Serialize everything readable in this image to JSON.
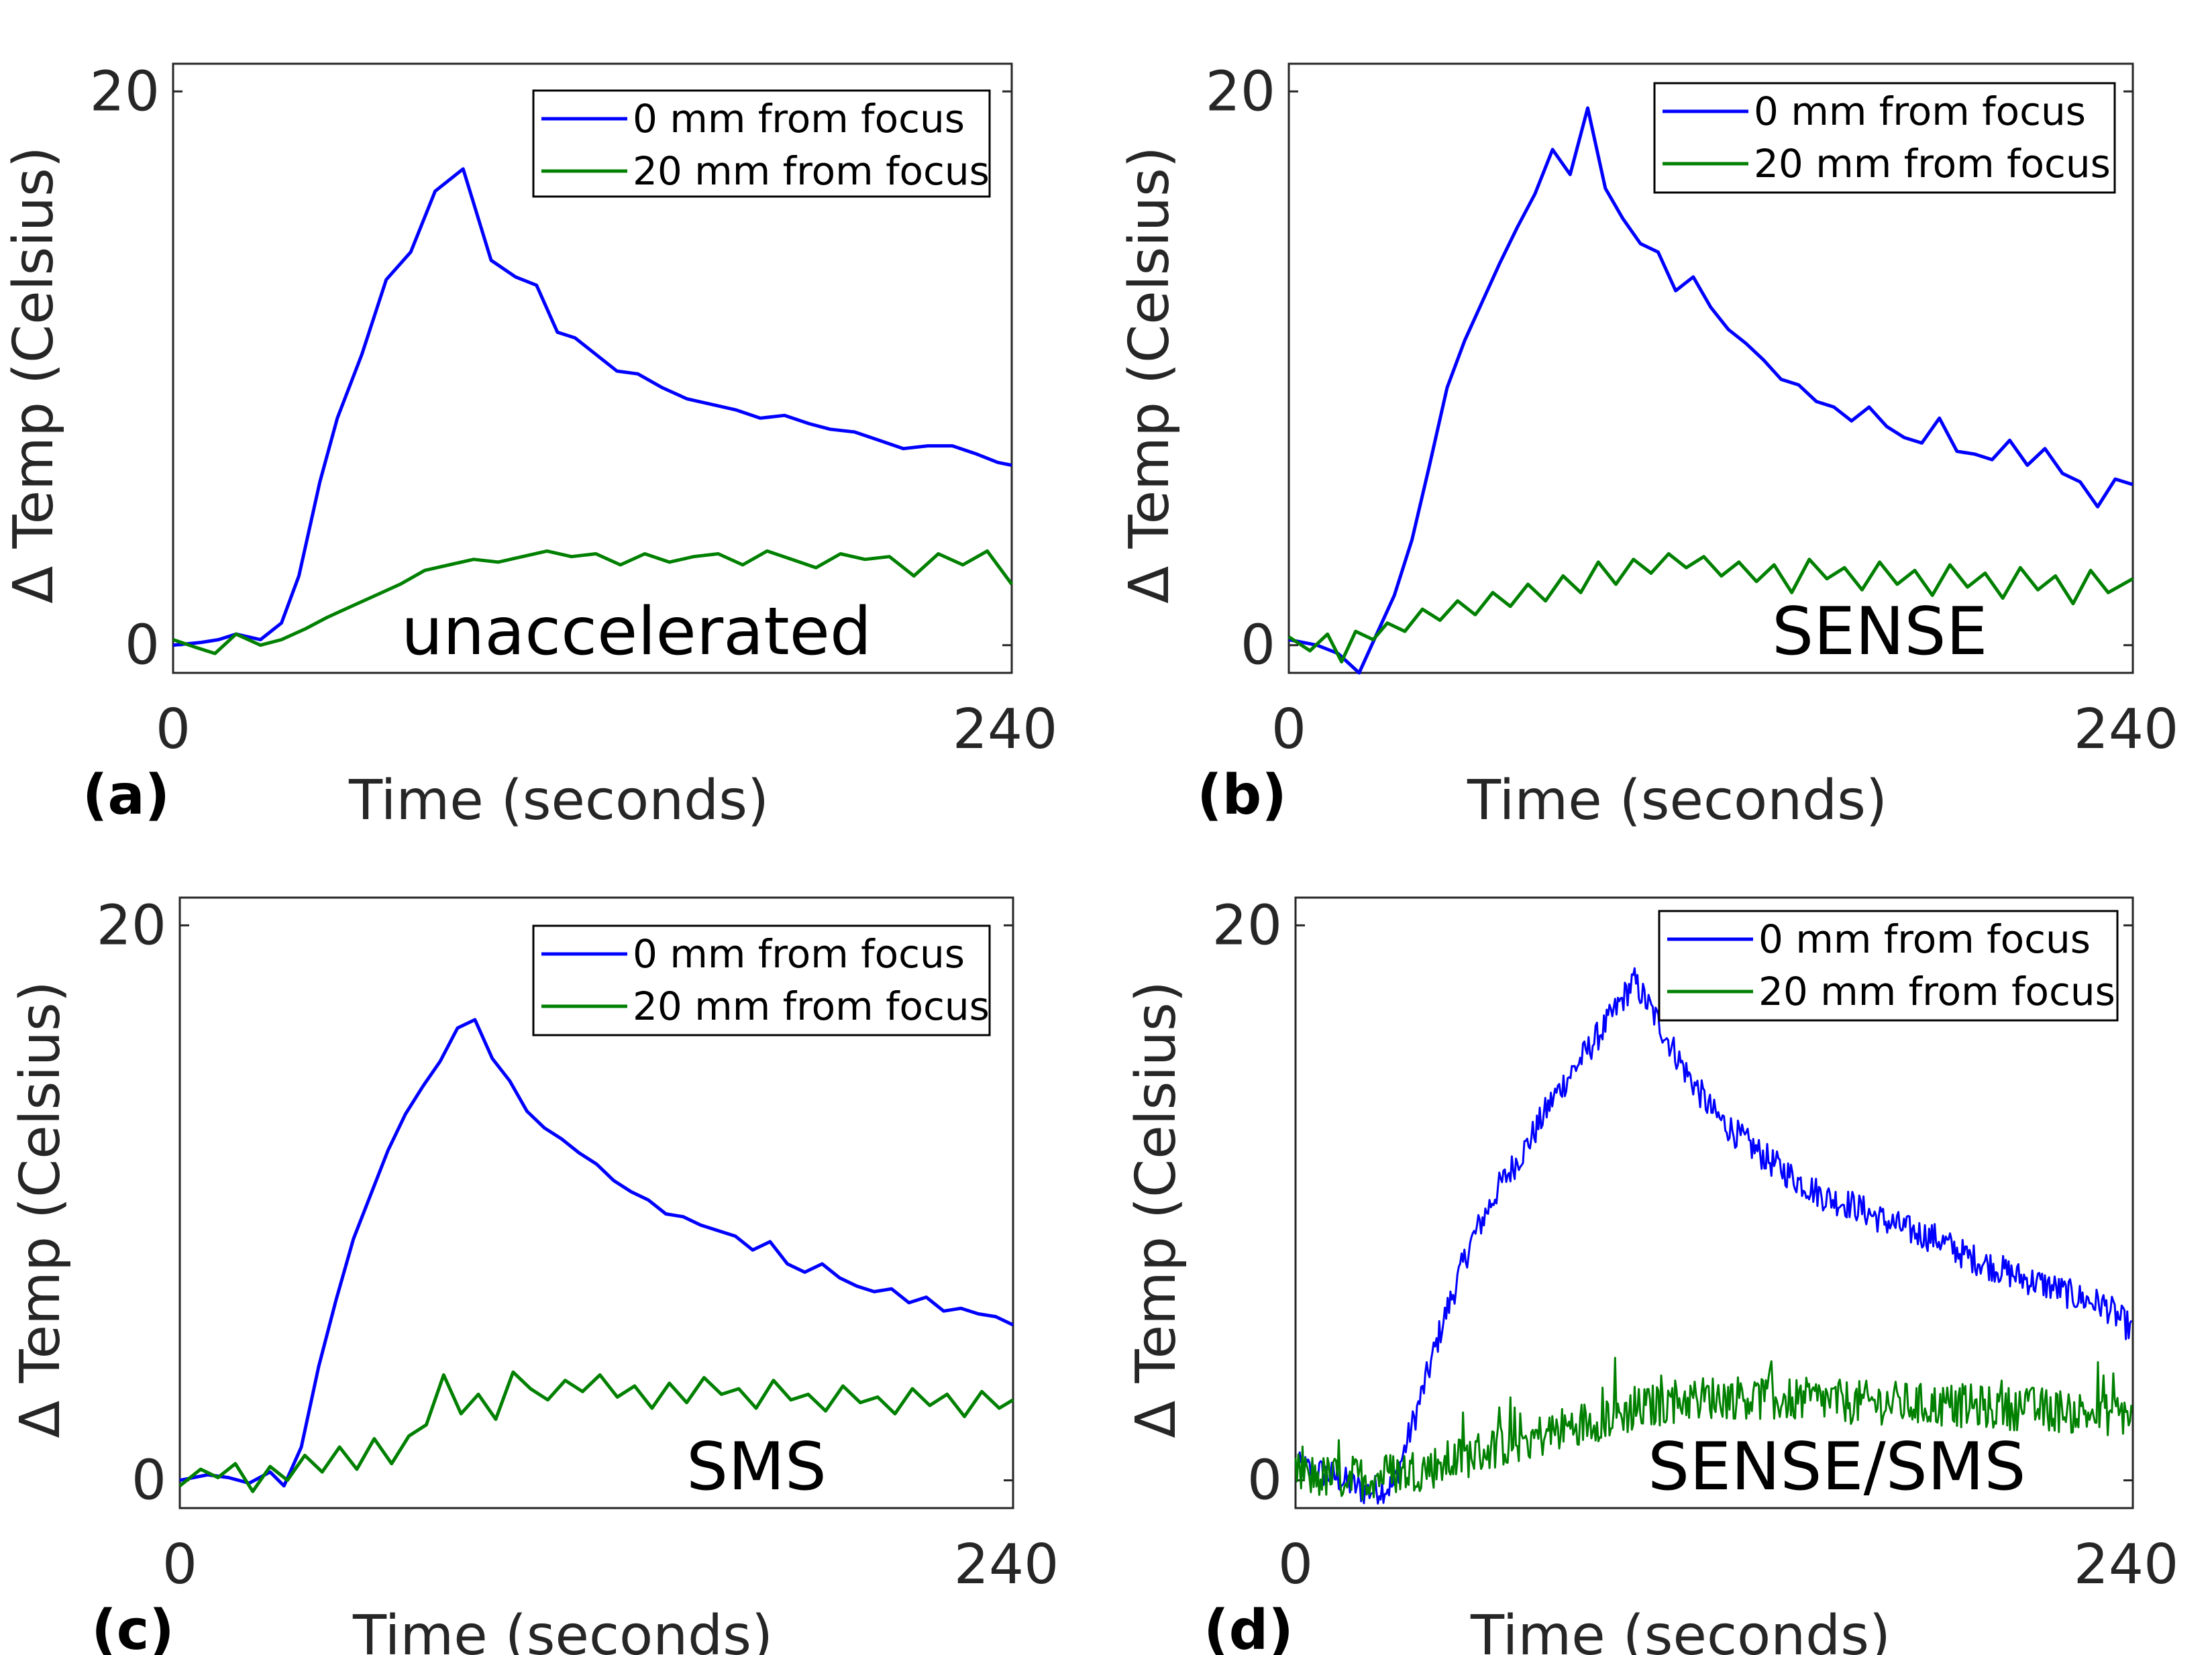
{
  "chart_data": [
    {
      "type": "line",
      "panel_label": "(a)",
      "annotation": "unaccelerated",
      "xlabel": "Time (seconds)",
      "ylabel": "Δ Temp (Celsius)",
      "xlim": [
        0,
        240
      ],
      "ylim": [
        -1,
        21
      ],
      "xticks": [
        "0",
        "240"
      ],
      "yticks": [
        "0",
        "20"
      ],
      "series": [
        {
          "name": "0 mm from focus",
          "color": "#0000ff",
          "x": [
            0,
            8,
            13,
            18,
            25,
            31,
            36,
            42,
            47,
            54,
            61,
            68,
            75,
            83,
            91,
            98,
            104,
            110,
            115,
            120,
            127,
            133,
            140,
            147,
            154,
            161,
            168,
            175,
            182,
            188,
            195,
            202,
            209,
            216,
            223,
            230,
            236,
            240
          ],
          "y": [
            0,
            0.1,
            0.2,
            0.4,
            0.2,
            0.8,
            2.5,
            5.9,
            8.2,
            10.5,
            13.2,
            14.2,
            16.4,
            17.2,
            13.9,
            13.3,
            13.0,
            11.3,
            11.1,
            10.6,
            9.9,
            9.8,
            9.3,
            8.9,
            8.7,
            8.5,
            8.2,
            8.3,
            8.0,
            7.8,
            7.7,
            7.4,
            7.1,
            7.2,
            7.2,
            6.9,
            6.6,
            6.5
          ]
        },
        {
          "name": "20 mm from focus",
          "color": "#008000",
          "x": [
            0,
            7,
            12,
            18,
            25,
            31,
            38,
            44,
            51,
            58,
            65,
            72,
            79,
            86,
            93,
            100,
            107,
            114,
            121,
            128,
            135,
            142,
            149,
            156,
            163,
            170,
            177,
            184,
            191,
            198,
            205,
            212,
            219,
            226,
            233,
            240
          ],
          "y": [
            0.2,
            -0.1,
            -0.3,
            0.4,
            0.0,
            0.2,
            0.6,
            1.0,
            1.4,
            1.8,
            2.2,
            2.7,
            2.9,
            3.1,
            3.0,
            3.2,
            3.4,
            3.2,
            3.3,
            2.9,
            3.3,
            3.0,
            3.2,
            3.3,
            2.9,
            3.4,
            3.1,
            2.8,
            3.3,
            3.1,
            3.2,
            2.5,
            3.3,
            2.9,
            3.4,
            2.2
          ]
        }
      ]
    },
    {
      "type": "line",
      "panel_label": "(b)",
      "annotation": "SENSE",
      "xlabel": "Time (seconds)",
      "ylabel": "Δ Temp (Celsius)",
      "xlim": [
        0,
        240
      ],
      "ylim": [
        -1,
        21
      ],
      "xticks": [
        "0",
        "240"
      ],
      "yticks": [
        "0",
        "20"
      ],
      "series": [
        {
          "name": "0 mm from focus",
          "color": "#0000ff",
          "x": [
            0,
            8,
            14,
            20,
            25,
            30,
            35,
            40,
            45,
            50,
            55,
            60,
            65,
            70,
            75,
            80,
            85,
            90,
            95,
            100,
            105,
            110,
            115,
            120,
            125,
            130,
            135,
            140,
            145,
            150,
            155,
            160,
            165,
            170,
            175,
            180,
            185,
            190,
            195,
            200,
            205,
            210,
            215,
            220,
            225,
            230,
            235,
            240
          ],
          "y": [
            0.2,
            0,
            -0.3,
            -1.0,
            0.4,
            1.8,
            3.8,
            6.5,
            9.3,
            11.0,
            12.4,
            13.8,
            15.1,
            16.3,
            17.9,
            17.0,
            19.4,
            16.5,
            15.4,
            14.5,
            14.2,
            12.8,
            13.3,
            12.2,
            11.4,
            10.9,
            10.3,
            9.6,
            9.4,
            8.8,
            8.6,
            8.1,
            8.6,
            7.9,
            7.5,
            7.3,
            8.2,
            7.0,
            6.9,
            6.7,
            7.4,
            6.5,
            7.1,
            6.2,
            5.9,
            5.0,
            6.0,
            5.8
          ]
        },
        {
          "name": "20 mm from focus",
          "color": "#008000",
          "x": [
            0,
            6,
            11,
            15,
            19,
            24,
            28,
            33,
            38,
            43,
            48,
            53,
            58,
            63,
            68,
            73,
            78,
            83,
            88,
            93,
            98,
            103,
            108,
            113,
            118,
            123,
            128,
            133,
            138,
            143,
            148,
            153,
            158,
            163,
            168,
            173,
            178,
            183,
            188,
            193,
            198,
            203,
            208,
            213,
            218,
            223,
            228,
            233,
            240
          ],
          "y": [
            0.3,
            -0.2,
            0.4,
            -0.6,
            0.5,
            0.2,
            0.8,
            0.5,
            1.3,
            0.9,
            1.6,
            1.1,
            1.9,
            1.4,
            2.2,
            1.6,
            2.5,
            1.9,
            3.0,
            2.2,
            3.1,
            2.6,
            3.3,
            2.8,
            3.2,
            2.5,
            3.0,
            2.3,
            2.9,
            1.9,
            3.1,
            2.4,
            2.8,
            2.0,
            3.0,
            2.2,
            2.7,
            1.8,
            2.9,
            2.1,
            2.6,
            1.7,
            2.8,
            2.0,
            2.5,
            1.5,
            2.7,
            1.9,
            2.4
          ]
        }
      ]
    },
    {
      "type": "line",
      "panel_label": "(c)",
      "annotation": "SMS",
      "xlabel": "Time (seconds)",
      "ylabel": "Δ Temp (Celsius)",
      "xlim": [
        0,
        240
      ],
      "ylim": [
        -1,
        21
      ],
      "xticks": [
        "0",
        "240"
      ],
      "yticks": [
        "0",
        "20"
      ],
      "series": [
        {
          "name": "0 mm from focus",
          "color": "#0000ff",
          "x": [
            0,
            8,
            14,
            20,
            26,
            30,
            35,
            40,
            45,
            50,
            55,
            60,
            65,
            70,
            75,
            80,
            85,
            90,
            95,
            100,
            105,
            110,
            115,
            120,
            125,
            130,
            135,
            140,
            145,
            150,
            155,
            160,
            165,
            170,
            175,
            180,
            185,
            190,
            195,
            200,
            205,
            210,
            215,
            220,
            225,
            230,
            235,
            240
          ],
          "y": [
            0,
            0.2,
            0.1,
            -0.1,
            0.3,
            -0.2,
            1.2,
            4.1,
            6.5,
            8.7,
            10.3,
            11.9,
            13.2,
            14.2,
            15.1,
            16.3,
            16.6,
            15.2,
            14.4,
            13.3,
            12.7,
            12.3,
            11.8,
            11.4,
            10.8,
            10.4,
            10.1,
            9.6,
            9.5,
            9.2,
            9.0,
            8.8,
            8.3,
            8.6,
            7.8,
            7.5,
            7.8,
            7.3,
            7.0,
            6.8,
            6.9,
            6.4,
            6.6,
            6.1,
            6.2,
            6.0,
            5.9,
            5.6
          ]
        },
        {
          "name": "20 mm from focus",
          "color": "#008000",
          "x": [
            0,
            6,
            11,
            16,
            21,
            26,
            31,
            36,
            41,
            46,
            51,
            56,
            61,
            66,
            71,
            76,
            81,
            86,
            91,
            96,
            101,
            106,
            111,
            116,
            121,
            126,
            131,
            136,
            141,
            146,
            151,
            156,
            161,
            166,
            171,
            176,
            181,
            186,
            191,
            196,
            201,
            206,
            211,
            216,
            221,
            226,
            231,
            236,
            240
          ],
          "y": [
            -0.2,
            0.4,
            0.1,
            0.6,
            -0.4,
            0.5,
            0.0,
            0.9,
            0.3,
            1.2,
            0.4,
            1.5,
            0.6,
            1.6,
            2.0,
            3.8,
            2.4,
            3.1,
            2.2,
            3.9,
            3.3,
            2.9,
            3.6,
            3.2,
            3.8,
            3.0,
            3.4,
            2.6,
            3.5,
            2.8,
            3.7,
            3.1,
            3.3,
            2.6,
            3.6,
            2.9,
            3.1,
            2.5,
            3.4,
            2.8,
            3.0,
            2.4,
            3.3,
            2.7,
            3.1,
            2.3,
            3.2,
            2.6,
            2.9
          ]
        }
      ]
    },
    {
      "type": "line",
      "panel_label": "(d)",
      "annotation": "SENSE/SMS",
      "xlabel": "Time (seconds)",
      "ylabel": "Δ Temp (Celsius)",
      "xlim": [
        0,
        240
      ],
      "ylim": [
        -1,
        21
      ],
      "xticks": [
        "0",
        "240"
      ],
      "yticks": [
        "0",
        "20"
      ],
      "noisy": true,
      "series": [
        {
          "name": "0 mm from focus",
          "color": "#0000ff",
          "x": [
            0,
            10,
            20,
            28,
            35,
            42,
            50,
            58,
            66,
            74,
            82,
            90,
            97,
            104,
            112,
            120,
            128,
            136,
            144,
            152,
            160,
            168,
            176,
            184,
            192,
            200,
            208,
            216,
            224,
            232,
            240
          ],
          "y": [
            0.5,
            0.2,
            -0.4,
            -0.2,
            2.6,
            5.6,
            8.5,
            10.5,
            12.0,
            13.8,
            15.2,
            16.6,
            18.0,
            16.5,
            14.7,
            13.2,
            12.3,
            11.5,
            10.8,
            10.2,
            9.9,
            9.4,
            9.0,
            8.7,
            8.1,
            7.7,
            7.3,
            7.0,
            6.6,
            6.3,
            5.4
          ]
        },
        {
          "name": "20 mm from focus",
          "color": "#008000",
          "x": [
            0,
            10,
            20,
            30,
            40,
            50,
            60,
            70,
            80,
            90,
            100,
            110,
            120,
            130,
            140,
            150,
            160,
            170,
            180,
            190,
            200,
            210,
            220,
            230,
            240
          ],
          "y": [
            0.2,
            0.1,
            0.1,
            0.3,
            0.5,
            0.9,
            1.3,
            1.6,
            2.0,
            2.3,
            2.6,
            2.9,
            3.0,
            3.0,
            2.9,
            2.9,
            2.8,
            2.8,
            2.7,
            2.7,
            2.6,
            2.6,
            2.5,
            2.4,
            2.4
          ]
        }
      ]
    }
  ]
}
